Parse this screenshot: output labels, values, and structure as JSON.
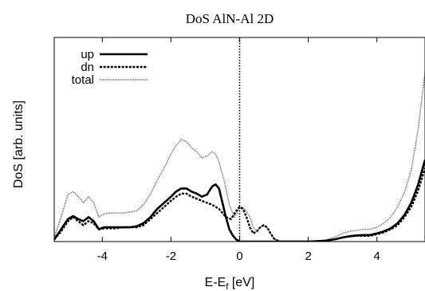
{
  "chart_data": {
    "type": "line",
    "title": "DoS AlN-Al 2D",
    "xlabel_main": "E-E",
    "xlabel_sub": "f",
    "xlabel_unit": " [eV]",
    "ylabel": "DoS [arb. units]",
    "xlim": [
      -5.4,
      5.4
    ],
    "ylim": [
      0,
      1
    ],
    "xticks": [
      -4,
      -2,
      0,
      2,
      4
    ],
    "xtick_labels": [
      "-4",
      "-2",
      "0",
      "2",
      "4"
    ],
    "grid": false,
    "legend_position": "top-left",
    "fermi_line_x": 0,
    "series": [
      {
        "name": "up",
        "style": "solid",
        "color": "#000000",
        "x": [
          -5.4,
          -5.2,
          -5.0,
          -4.85,
          -4.7,
          -4.55,
          -4.4,
          -4.25,
          -4.1,
          -3.95,
          -3.8,
          -3.6,
          -3.4,
          -3.2,
          -3.0,
          -2.8,
          -2.6,
          -2.4,
          -2.2,
          -2.0,
          -1.85,
          -1.7,
          -1.55,
          -1.4,
          -1.25,
          -1.1,
          -0.95,
          -0.8,
          -0.7,
          -0.6,
          -0.5,
          -0.4,
          -0.3,
          -0.2,
          -0.1,
          0.0,
          0.2,
          0.5,
          1.0,
          1.5,
          2.0,
          2.5,
          2.8,
          3.0,
          3.2,
          3.4,
          3.6,
          3.8,
          4.0,
          4.2,
          4.4,
          4.6,
          4.8,
          5.0,
          5.2,
          5.4
        ],
        "y": [
          0.01,
          0.06,
          0.11,
          0.125,
          0.11,
          0.1,
          0.12,
          0.1,
          0.06,
          0.07,
          0.07,
          0.07,
          0.07,
          0.07,
          0.075,
          0.09,
          0.12,
          0.16,
          0.19,
          0.22,
          0.245,
          0.26,
          0.26,
          0.245,
          0.235,
          0.22,
          0.23,
          0.27,
          0.28,
          0.26,
          0.19,
          0.12,
          0.06,
          0.03,
          0.01,
          0.0,
          0.0,
          0.0,
          0.0,
          0.0,
          0.0,
          0.004,
          0.012,
          0.02,
          0.026,
          0.03,
          0.032,
          0.032,
          0.04,
          0.05,
          0.065,
          0.09,
          0.13,
          0.19,
          0.28,
          0.4
        ]
      },
      {
        "name": "dn",
        "style": "dashed",
        "color": "#000000",
        "x": [
          -5.4,
          -5.2,
          -5.0,
          -4.85,
          -4.7,
          -4.55,
          -4.4,
          -4.25,
          -4.1,
          -3.95,
          -3.8,
          -3.6,
          -3.4,
          -3.2,
          -3.0,
          -2.8,
          -2.6,
          -2.4,
          -2.2,
          -2.0,
          -1.85,
          -1.7,
          -1.55,
          -1.4,
          -1.25,
          -1.1,
          -0.95,
          -0.8,
          -0.6,
          -0.4,
          -0.25,
          -0.1,
          0.0,
          0.1,
          0.2,
          0.3,
          0.4,
          0.5,
          0.6,
          0.7,
          0.8,
          0.9,
          1.0,
          1.1,
          1.2,
          1.5,
          2.0,
          2.5,
          2.8,
          3.0,
          3.2,
          3.4,
          3.6,
          3.8,
          4.0,
          4.2,
          4.4,
          4.6,
          4.8,
          5.0,
          5.2,
          5.4
        ],
        "y": [
          0.01,
          0.05,
          0.1,
          0.12,
          0.1,
          0.08,
          0.1,
          0.09,
          0.06,
          0.065,
          0.065,
          0.065,
          0.07,
          0.07,
          0.07,
          0.08,
          0.11,
          0.14,
          0.17,
          0.2,
          0.22,
          0.235,
          0.235,
          0.22,
          0.21,
          0.2,
          0.19,
          0.18,
          0.16,
          0.12,
          0.11,
          0.15,
          0.17,
          0.16,
          0.12,
          0.07,
          0.04,
          0.05,
          0.07,
          0.08,
          0.07,
          0.04,
          0.015,
          0.005,
          0.0,
          0.0,
          0.0,
          0.004,
          0.012,
          0.02,
          0.025,
          0.028,
          0.028,
          0.028,
          0.036,
          0.045,
          0.06,
          0.08,
          0.12,
          0.17,
          0.25,
          0.36
        ]
      },
      {
        "name": "total",
        "style": "dotted",
        "color": "#555555",
        "x": [
          -5.4,
          -5.2,
          -5.0,
          -4.85,
          -4.7,
          -4.55,
          -4.4,
          -4.25,
          -4.1,
          -3.95,
          -3.8,
          -3.6,
          -3.4,
          -3.2,
          -3.0,
          -2.8,
          -2.6,
          -2.4,
          -2.2,
          -2.0,
          -1.85,
          -1.7,
          -1.55,
          -1.4,
          -1.25,
          -1.1,
          -0.95,
          -0.8,
          -0.7,
          -0.6,
          -0.45,
          -0.3,
          -0.15,
          -0.05,
          0.05,
          0.15,
          0.3,
          0.4,
          0.5,
          0.6,
          0.7,
          0.8,
          0.9,
          1.0,
          1.1,
          1.2,
          1.5,
          2.0,
          2.5,
          2.8,
          3.0,
          3.2,
          3.4,
          3.6,
          3.8,
          4.0,
          4.2,
          4.4,
          4.6,
          4.8,
          5.0,
          5.2,
          5.4
        ],
        "y": [
          0.02,
          0.12,
          0.23,
          0.245,
          0.22,
          0.19,
          0.22,
          0.19,
          0.12,
          0.135,
          0.14,
          0.14,
          0.14,
          0.145,
          0.15,
          0.18,
          0.23,
          0.3,
          0.36,
          0.43,
          0.47,
          0.5,
          0.49,
          0.46,
          0.44,
          0.41,
          0.42,
          0.44,
          0.43,
          0.39,
          0.3,
          0.18,
          0.12,
          0.15,
          0.17,
          0.16,
          0.12,
          0.07,
          0.05,
          0.07,
          0.08,
          0.07,
          0.04,
          0.015,
          0.005,
          0.0,
          0.0,
          0.0,
          0.008,
          0.024,
          0.04,
          0.05,
          0.055,
          0.06,
          0.06,
          0.07,
          0.09,
          0.12,
          0.17,
          0.24,
          0.35,
          0.55,
          0.83
        ]
      }
    ]
  }
}
